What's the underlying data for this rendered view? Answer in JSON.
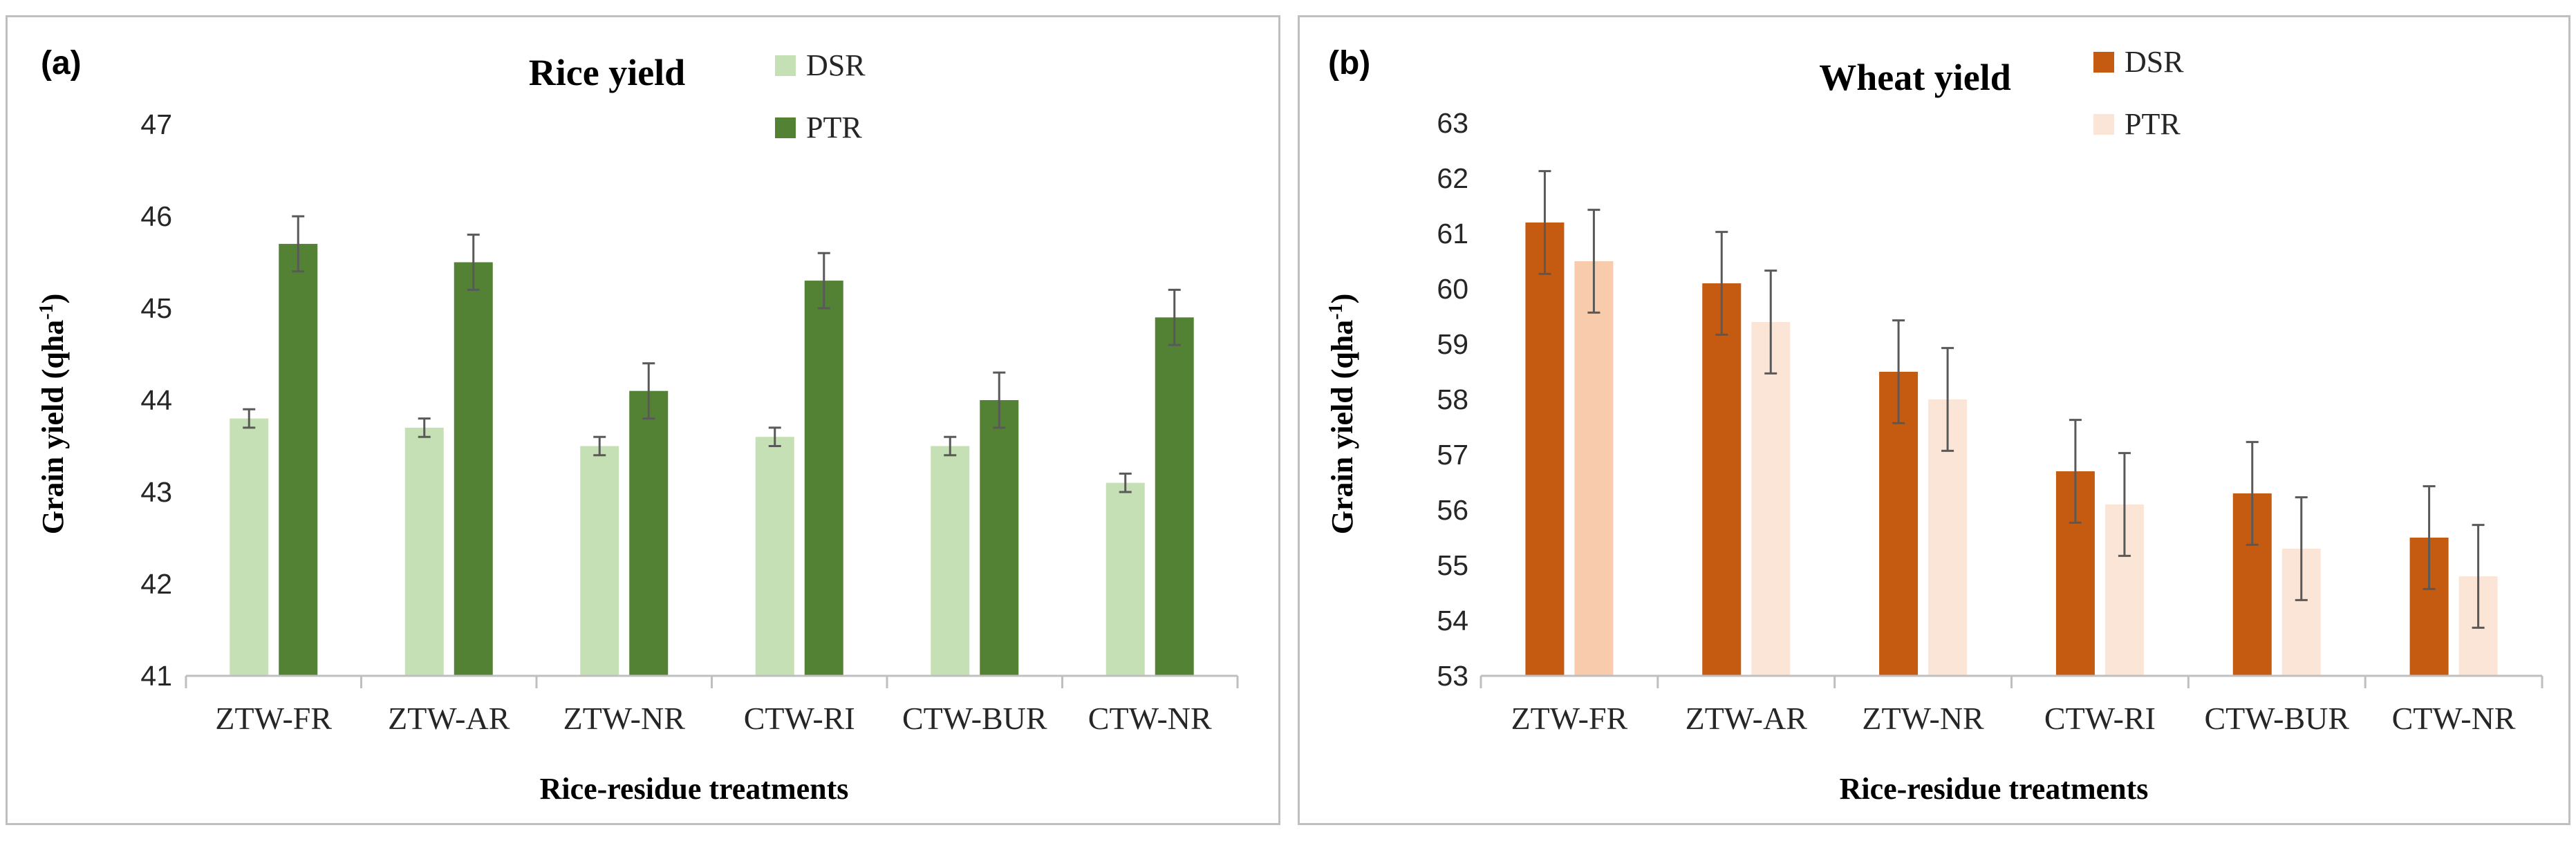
{
  "chart_data": [
    {
      "type": "bar",
      "panel_label": "(a)",
      "title": "Rice yield",
      "xlabel": "Rice-residue treatments",
      "ylabel_main": "Grain yield (qha",
      "ylabel_sup": "-1",
      "ylabel_end": ")",
      "ylim": [
        41,
        47
      ],
      "yticks": [
        41,
        42,
        43,
        44,
        45,
        46,
        47
      ],
      "categories": [
        "ZTW-FR",
        "ZTW-AR",
        "ZTW-NR",
        "CTW-RI",
        "CTW-BUR",
        "CTW-NR"
      ],
      "legend_position": "top-center",
      "series": [
        {
          "name": "DSR",
          "color": "#c5e0b4",
          "values": [
            43.8,
            43.7,
            43.5,
            43.6,
            43.5,
            43.1
          ],
          "errors": [
            0.1,
            0.1,
            0.1,
            0.1,
            0.1,
            0.1
          ]
        },
        {
          "name": "PTR",
          "color": "#548235",
          "values": [
            45.7,
            45.5,
            44.1,
            45.3,
            44.0,
            44.9
          ],
          "errors": [
            0.3,
            0.3,
            0.3,
            0.3,
            0.3,
            0.3
          ]
        }
      ]
    },
    {
      "type": "bar",
      "panel_label": "(b)",
      "title": "Wheat yield",
      "xlabel": "Rice-residue treatments",
      "ylabel_main": "Grain yield (qha",
      "ylabel_sup": "-1",
      "ylabel_end": ")",
      "ylim": [
        53,
        63
      ],
      "yticks": [
        53,
        54,
        55,
        56,
        57,
        58,
        59,
        60,
        61,
        62,
        63
      ],
      "categories": [
        "ZTW-FR",
        "ZTW-AR",
        "ZTW-NR",
        "CTW-RI",
        "CTW-BUR",
        "CTW-NR"
      ],
      "legend_position": "top-center",
      "series": [
        {
          "name": "DSR",
          "color": "#c55a11",
          "values": [
            61.2,
            60.1,
            58.5,
            56.7,
            56.3,
            55.5
          ],
          "errors": [
            0.93,
            0.93,
            0.93,
            0.93,
            0.93,
            0.93
          ]
        },
        {
          "name": "PTR",
          "color": "#fbe5d6",
          "colors": [
            "#f8cbad",
            "#fbe5d6",
            "#fbe5d6",
            "#fbe5d6",
            "#fbe5d6",
            "#fbe5d6"
          ],
          "values": [
            60.5,
            59.4,
            58.0,
            56.1,
            55.3,
            54.8
          ],
          "errors": [
            0.93,
            0.93,
            0.93,
            0.93,
            0.93,
            0.93
          ]
        }
      ]
    }
  ]
}
